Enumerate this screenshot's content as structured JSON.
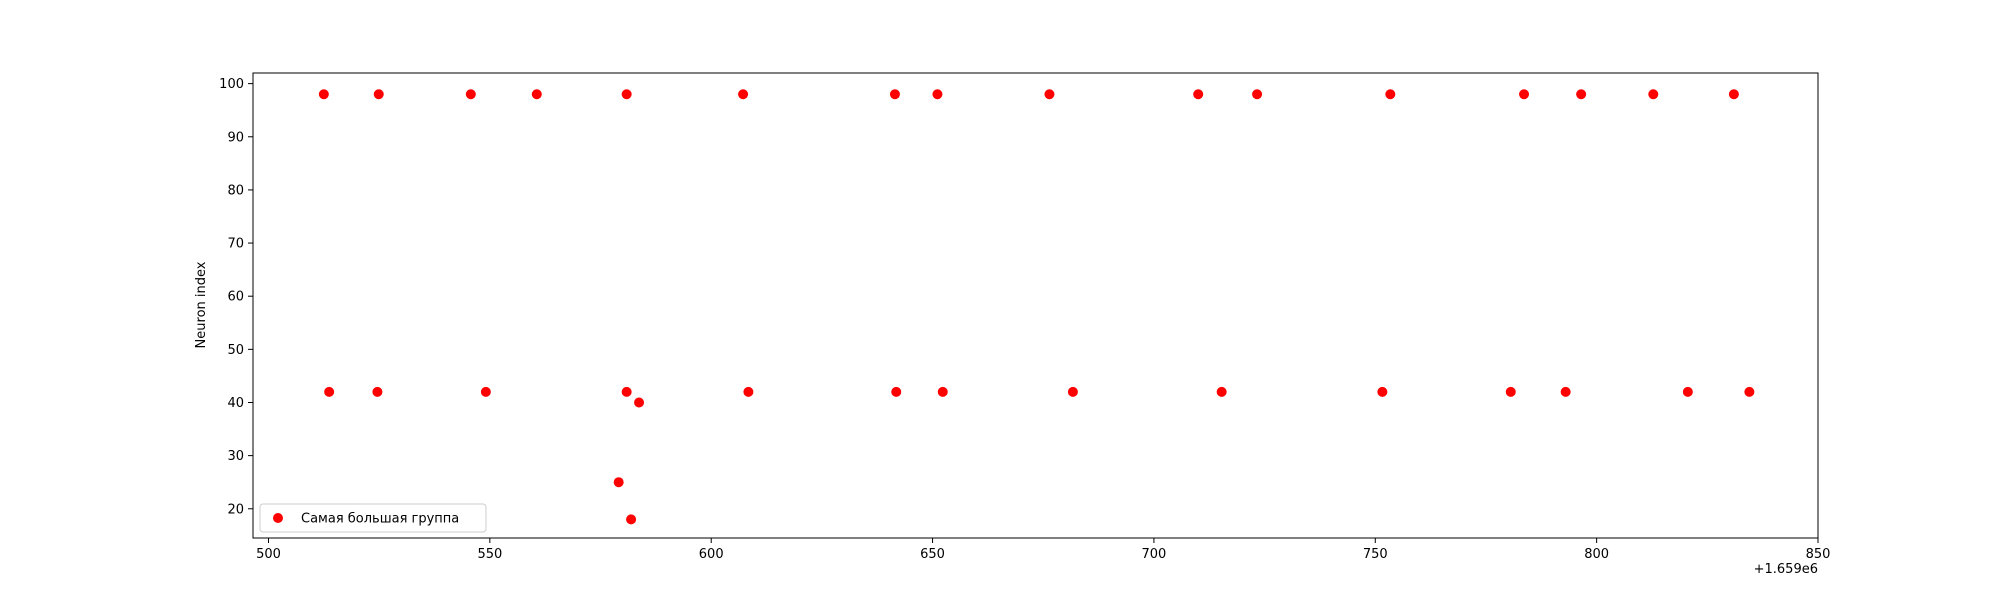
{
  "chart_data": {
    "type": "scatter",
    "title": "",
    "xlabel": "",
    "ylabel": "Neuron index",
    "x_offset_label": "+1.659e6",
    "xlim": [
      496.5,
      850
    ],
    "ylim": [
      14.5,
      102
    ],
    "xticks": [
      500,
      550,
      600,
      650,
      700,
      750,
      800,
      850
    ],
    "xtick_labels": [
      "500",
      "550",
      "600",
      "650",
      "700",
      "750",
      "800",
      "850"
    ],
    "yticks": [
      20,
      30,
      40,
      50,
      60,
      70,
      80,
      90,
      100
    ],
    "ytick_labels": [
      "20",
      "30",
      "40",
      "50",
      "60",
      "70",
      "80",
      "90",
      "100"
    ],
    "grid": false,
    "legend_position": "lower left",
    "series": [
      {
        "name": "Самая большая группа",
        "color": "#ff0000",
        "marker": "circle",
        "points": [
          {
            "x": 512.5,
            "y": 98
          },
          {
            "x": 524.9,
            "y": 98
          },
          {
            "x": 545.7,
            "y": 98
          },
          {
            "x": 560.6,
            "y": 98
          },
          {
            "x": 580.9,
            "y": 98
          },
          {
            "x": 607.2,
            "y": 98
          },
          {
            "x": 641.5,
            "y": 98
          },
          {
            "x": 651.1,
            "y": 98
          },
          {
            "x": 676.4,
            "y": 98
          },
          {
            "x": 710.0,
            "y": 98
          },
          {
            "x": 723.3,
            "y": 98
          },
          {
            "x": 753.4,
            "y": 98
          },
          {
            "x": 783.6,
            "y": 98
          },
          {
            "x": 796.5,
            "y": 98
          },
          {
            "x": 812.8,
            "y": 98
          },
          {
            "x": 831.0,
            "y": 98
          },
          {
            "x": 513.7,
            "y": 42
          },
          {
            "x": 524.6,
            "y": 42
          },
          {
            "x": 549.1,
            "y": 42
          },
          {
            "x": 580.9,
            "y": 42
          },
          {
            "x": 608.4,
            "y": 42
          },
          {
            "x": 641.8,
            "y": 42
          },
          {
            "x": 652.3,
            "y": 42
          },
          {
            "x": 681.7,
            "y": 42
          },
          {
            "x": 715.3,
            "y": 42
          },
          {
            "x": 751.6,
            "y": 42
          },
          {
            "x": 780.6,
            "y": 42
          },
          {
            "x": 793.0,
            "y": 42
          },
          {
            "x": 820.6,
            "y": 42
          },
          {
            "x": 834.5,
            "y": 42
          },
          {
            "x": 583.7,
            "y": 40
          },
          {
            "x": 579.1,
            "y": 25
          },
          {
            "x": 581.9,
            "y": 18
          }
        ]
      }
    ]
  }
}
